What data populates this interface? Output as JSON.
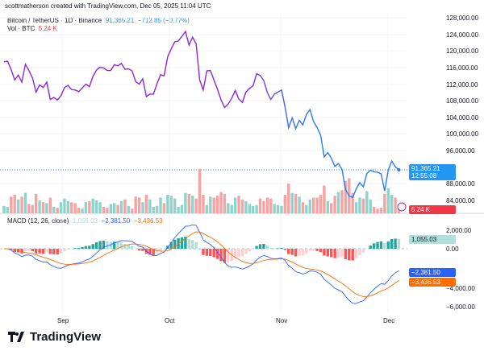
{
  "header": {
    "credit": "scottmatherson created with TradingView.com, Dec 05, 2025 11:04 UTC"
  },
  "legend": {
    "symbol": "Bitcoin / TetherUS · 1D · Binance",
    "price": "91,365.21",
    "change": "−712.85 (−0.77%)",
    "vol_label": "Vol · BTC",
    "vol_value": "5.24 K",
    "macd_label": "MACD (12, 26, close)",
    "macd_hist": "1,055.03",
    "macd_value": "−2,381.50",
    "macd_signal": "−3,436.53"
  },
  "price_scale": {
    "ticks": [
      "128,000.00",
      "124,000.00",
      "120,000.00",
      "116,000.00",
      "112,000.00",
      "108,000.00",
      "104,000.00",
      "100,000.00",
      "96,000.00",
      "88,000.00",
      "84,000.00"
    ],
    "last_price": "91,365.21",
    "countdown": "12:55:08",
    "vol_tag": "5.24 K"
  },
  "macd_scale": {
    "ticks": [
      "2,000.00",
      "0.00",
      "−4,000.00",
      "−6,000.00"
    ],
    "hist_tag": "1,055.03",
    "macd_tag": "−2,381.50",
    "signal_tag": "−3,436.53"
  },
  "time_axis": [
    "Sep",
    "Oct",
    "Nov",
    "Dec"
  ],
  "colors": {
    "up": "#26a69a",
    "down": "#ef5350",
    "line_start": "#8e24e8",
    "line_end": "#2979ff",
    "macd": "#2962ff",
    "signal": "#ff6d00"
  },
  "logo": "TradingView",
  "chart_data": {
    "type": "line",
    "start_date": "2025-08-16",
    "end_date": "2025-12-05",
    "close": [
      117400,
      117500,
      115500,
      113000,
      114200,
      112500,
      116800,
      115300,
      113500,
      110100,
      111800,
      111200,
      112500,
      108300,
      108800,
      108200,
      109200,
      111200,
      111700,
      110700,
      110600,
      110200,
      111100,
      112000,
      111400,
      113900,
      115400,
      116100,
      115900,
      115300,
      115300,
      116700,
      116400,
      117000,
      115600,
      115700,
      115200,
      112600,
      112000,
      113300,
      109000,
      109600,
      109600,
      112100,
      114300,
      114000,
      118600,
      120500,
      122200,
      122400,
      123500,
      124700,
      121400,
      123300,
      121700,
      113000,
      110600,
      115200,
      115300,
      113000,
      110800,
      108200,
      106400,
      107200,
      108600,
      110500,
      108400,
      107600,
      110100,
      111000,
      111600,
      114500,
      114100,
      112900,
      110000,
      108300,
      109600,
      110100,
      110600,
      106500,
      101500,
      103900,
      101300,
      103300,
      102200,
      104700,
      105900,
      103000,
      101600,
      99700,
      94500,
      95500,
      94200,
      92200,
      92900,
      91500,
      86600,
      85100,
      84700,
      86800,
      88300,
      87300,
      90500,
      91300,
      90900,
      90800,
      90400,
      86300,
      91300,
      93500,
      92100,
      91365.21
    ],
    "volume_k": [
      8,
      7,
      18,
      20,
      15,
      18,
      22,
      10,
      9,
      21,
      14,
      12,
      11,
      17,
      7,
      6,
      12,
      16,
      13,
      12,
      11,
      6,
      5,
      12,
      13,
      16,
      14,
      12,
      7,
      6,
      10,
      11,
      9,
      13,
      15,
      8,
      5,
      18,
      17,
      12,
      20,
      15,
      7,
      8,
      17,
      11,
      20,
      19,
      16,
      7,
      9,
      22,
      21,
      19,
      16,
      48,
      20,
      9,
      18,
      17,
      19,
      23,
      21,
      11,
      9,
      17,
      19,
      15,
      13,
      10,
      8,
      9,
      16,
      13,
      17,
      16,
      10,
      9,
      8,
      20,
      32,
      22,
      21,
      18,
      12,
      9,
      15,
      17,
      17,
      20,
      30,
      13,
      11,
      19,
      23,
      25,
      35,
      38,
      22,
      12,
      17,
      16,
      24,
      15,
      7,
      5,
      6,
      21,
      27,
      20,
      17,
      5.24
    ],
    "price_range": [
      80000,
      128000
    ]
  }
}
